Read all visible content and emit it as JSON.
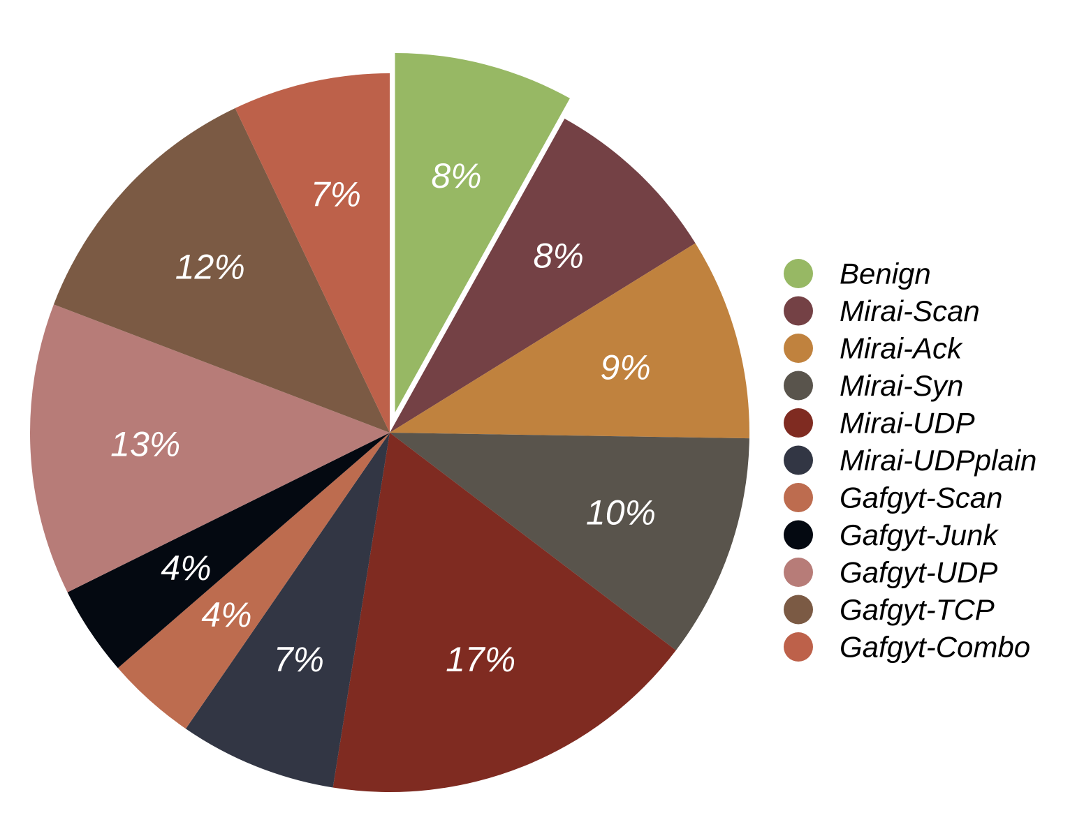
{
  "chart_data": {
    "type": "pie",
    "start_angle_deg": 0,
    "direction": "clockwise",
    "exploded": [
      "Benign"
    ],
    "legend_position": "right",
    "slices": [
      {
        "name": "Benign",
        "value": 8,
        "label": "8%",
        "color": "#97b864"
      },
      {
        "name": "Mirai-Scan",
        "value": 8,
        "label": "8%",
        "color": "#744145"
      },
      {
        "name": "Mirai-Ack",
        "value": 9,
        "label": "9%",
        "color": "#c0823e"
      },
      {
        "name": "Mirai-Syn",
        "value": 10,
        "label": "10%",
        "color": "#59544c"
      },
      {
        "name": "Mirai-UDP",
        "value": 17,
        "label": "17%",
        "color": "#7f2b21"
      },
      {
        "name": "Mirai-UDPplain",
        "value": 7,
        "label": "7%",
        "color": "#323644"
      },
      {
        "name": "Gafgyt-Scan",
        "value": 4,
        "label": "4%",
        "color": "#bd6c4f"
      },
      {
        "name": "Gafgyt-Junk",
        "value": 4,
        "label": "4%",
        "color": "#040911"
      },
      {
        "name": "Gafgyt-UDP",
        "value": 13,
        "label": "13%",
        "color": "#b77c78"
      },
      {
        "name": "Gafgyt-TCP",
        "value": 12,
        "label": "12%",
        "color": "#7b5a44"
      },
      {
        "name": "Gafgyt-Combo",
        "value": 7,
        "label": "7%",
        "color": "#bd614a"
      }
    ]
  }
}
